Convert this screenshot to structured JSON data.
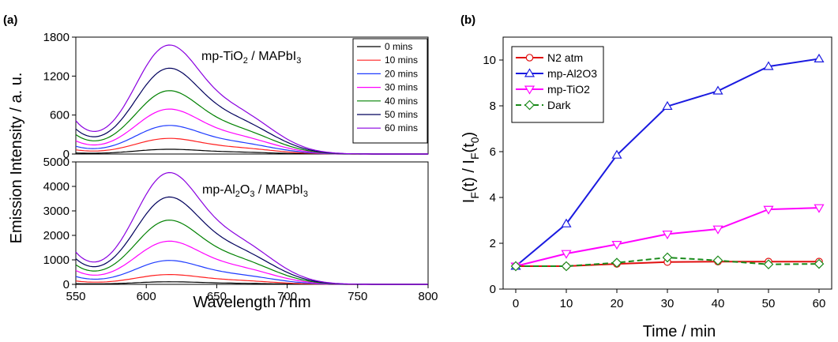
{
  "chart_data": [
    {
      "type": "line",
      "panel_label": "(a)",
      "annotation": {
        "prefix": "mp-TiO",
        "sub": "2",
        "middle": " / MAPbI",
        "sub2": "3"
      },
      "x_range": [
        550,
        800
      ],
      "x_ticks": [
        "550",
        "600",
        "650",
        "700",
        "750",
        "800"
      ],
      "ylim": [
        0,
        1800
      ],
      "y_ticks": [
        "0",
        "600",
        "1200",
        "1800"
      ],
      "legend_placement": "top-right",
      "series": [
        {
          "name": "0 mins",
          "color": "#000000",
          "peak": 70,
          "base": 15
        },
        {
          "name": "10 mins",
          "color": "#ff2020",
          "peak": 230,
          "base": 60
        },
        {
          "name": "20 mins",
          "color": "#1f3cff",
          "peak": 420,
          "base": 110
        },
        {
          "name": "30 mins",
          "color": "#ff00ff",
          "peak": 660,
          "base": 190
        },
        {
          "name": "40 mins",
          "color": "#008000",
          "peak": 930,
          "base": 280
        },
        {
          "name": "50 mins",
          "color": "#00005c",
          "peak": 1260,
          "base": 360
        },
        {
          "name": "60 mins",
          "color": "#8a00e0",
          "peak": 1600,
          "base": 480
        }
      ]
    },
    {
      "type": "line",
      "annotation": {
        "prefix": "mp-Al",
        "sub": "2",
        "middle": "O",
        "sub2": "3",
        "suffix": " / MAPbI",
        "sub3": "3"
      },
      "x_range": [
        550,
        800
      ],
      "ylim": [
        0,
        5000
      ],
      "y_ticks": [
        "0",
        "1000",
        "2000",
        "3000",
        "4000",
        "5000"
      ],
      "xlabel": "Wavelength / nm",
      "shared_ylabel": "Emission Intensity / a. u.",
      "series": [
        {
          "name": "0 mins",
          "color": "#000000",
          "peak": 100,
          "base": 25
        },
        {
          "name": "10 mins",
          "color": "#ff2020",
          "peak": 380,
          "base": 130
        },
        {
          "name": "20 mins",
          "color": "#1f3cff",
          "peak": 930,
          "base": 300
        },
        {
          "name": "30 mins",
          "color": "#ff00ff",
          "peak": 1680,
          "base": 530
        },
        {
          "name": "40 mins",
          "color": "#008000",
          "peak": 2500,
          "base": 750
        },
        {
          "name": "50 mins",
          "color": "#00005c",
          "peak": 3400,
          "base": 980
        },
        {
          "name": "60 mins",
          "color": "#8a00e0",
          "peak": 4350,
          "base": 1230
        }
      ]
    },
    {
      "type": "line",
      "panel_label": "(b)",
      "x": [
        0,
        10,
        20,
        30,
        40,
        50,
        60
      ],
      "x_ticks": [
        "0",
        "10",
        "20",
        "30",
        "40",
        "50",
        "60"
      ],
      "xlim": [
        -2.5,
        62.5
      ],
      "ylim": [
        0,
        11
      ],
      "y_ticks": [
        "0",
        "2",
        "4",
        "6",
        "8",
        "10"
      ],
      "xlabel": "Time / min",
      "ylabel": {
        "a": "I",
        "b": "F",
        "c": "(t) / I",
        "d": "F",
        "e": "(t",
        "f": "0",
        "g": ")"
      },
      "legend_placement": "top-left",
      "series": [
        {
          "name": "N2 atm",
          "color": "#e01010",
          "marker": "circle",
          "dash": false,
          "values": [
            1.0,
            1.0,
            1.1,
            1.18,
            1.2,
            1.2,
            1.2
          ]
        },
        {
          "name": "mp-Al2O3",
          "color": "#1a1ae0",
          "marker": "triangle-up",
          "dash": false,
          "values": [
            1.0,
            2.85,
            5.85,
            7.98,
            8.65,
            9.72,
            10.05
          ]
        },
        {
          "name": "mp-TiO2",
          "color": "#ff00ff",
          "marker": "triangle-down",
          "dash": false,
          "values": [
            1.0,
            1.55,
            1.95,
            2.4,
            2.62,
            3.48,
            3.55
          ]
        },
        {
          "name": "Dark",
          "color": "#1a8a1a",
          "marker": "diamond",
          "dash": true,
          "values": [
            1.0,
            1.0,
            1.15,
            1.38,
            1.25,
            1.08,
            1.1
          ]
        }
      ]
    }
  ]
}
